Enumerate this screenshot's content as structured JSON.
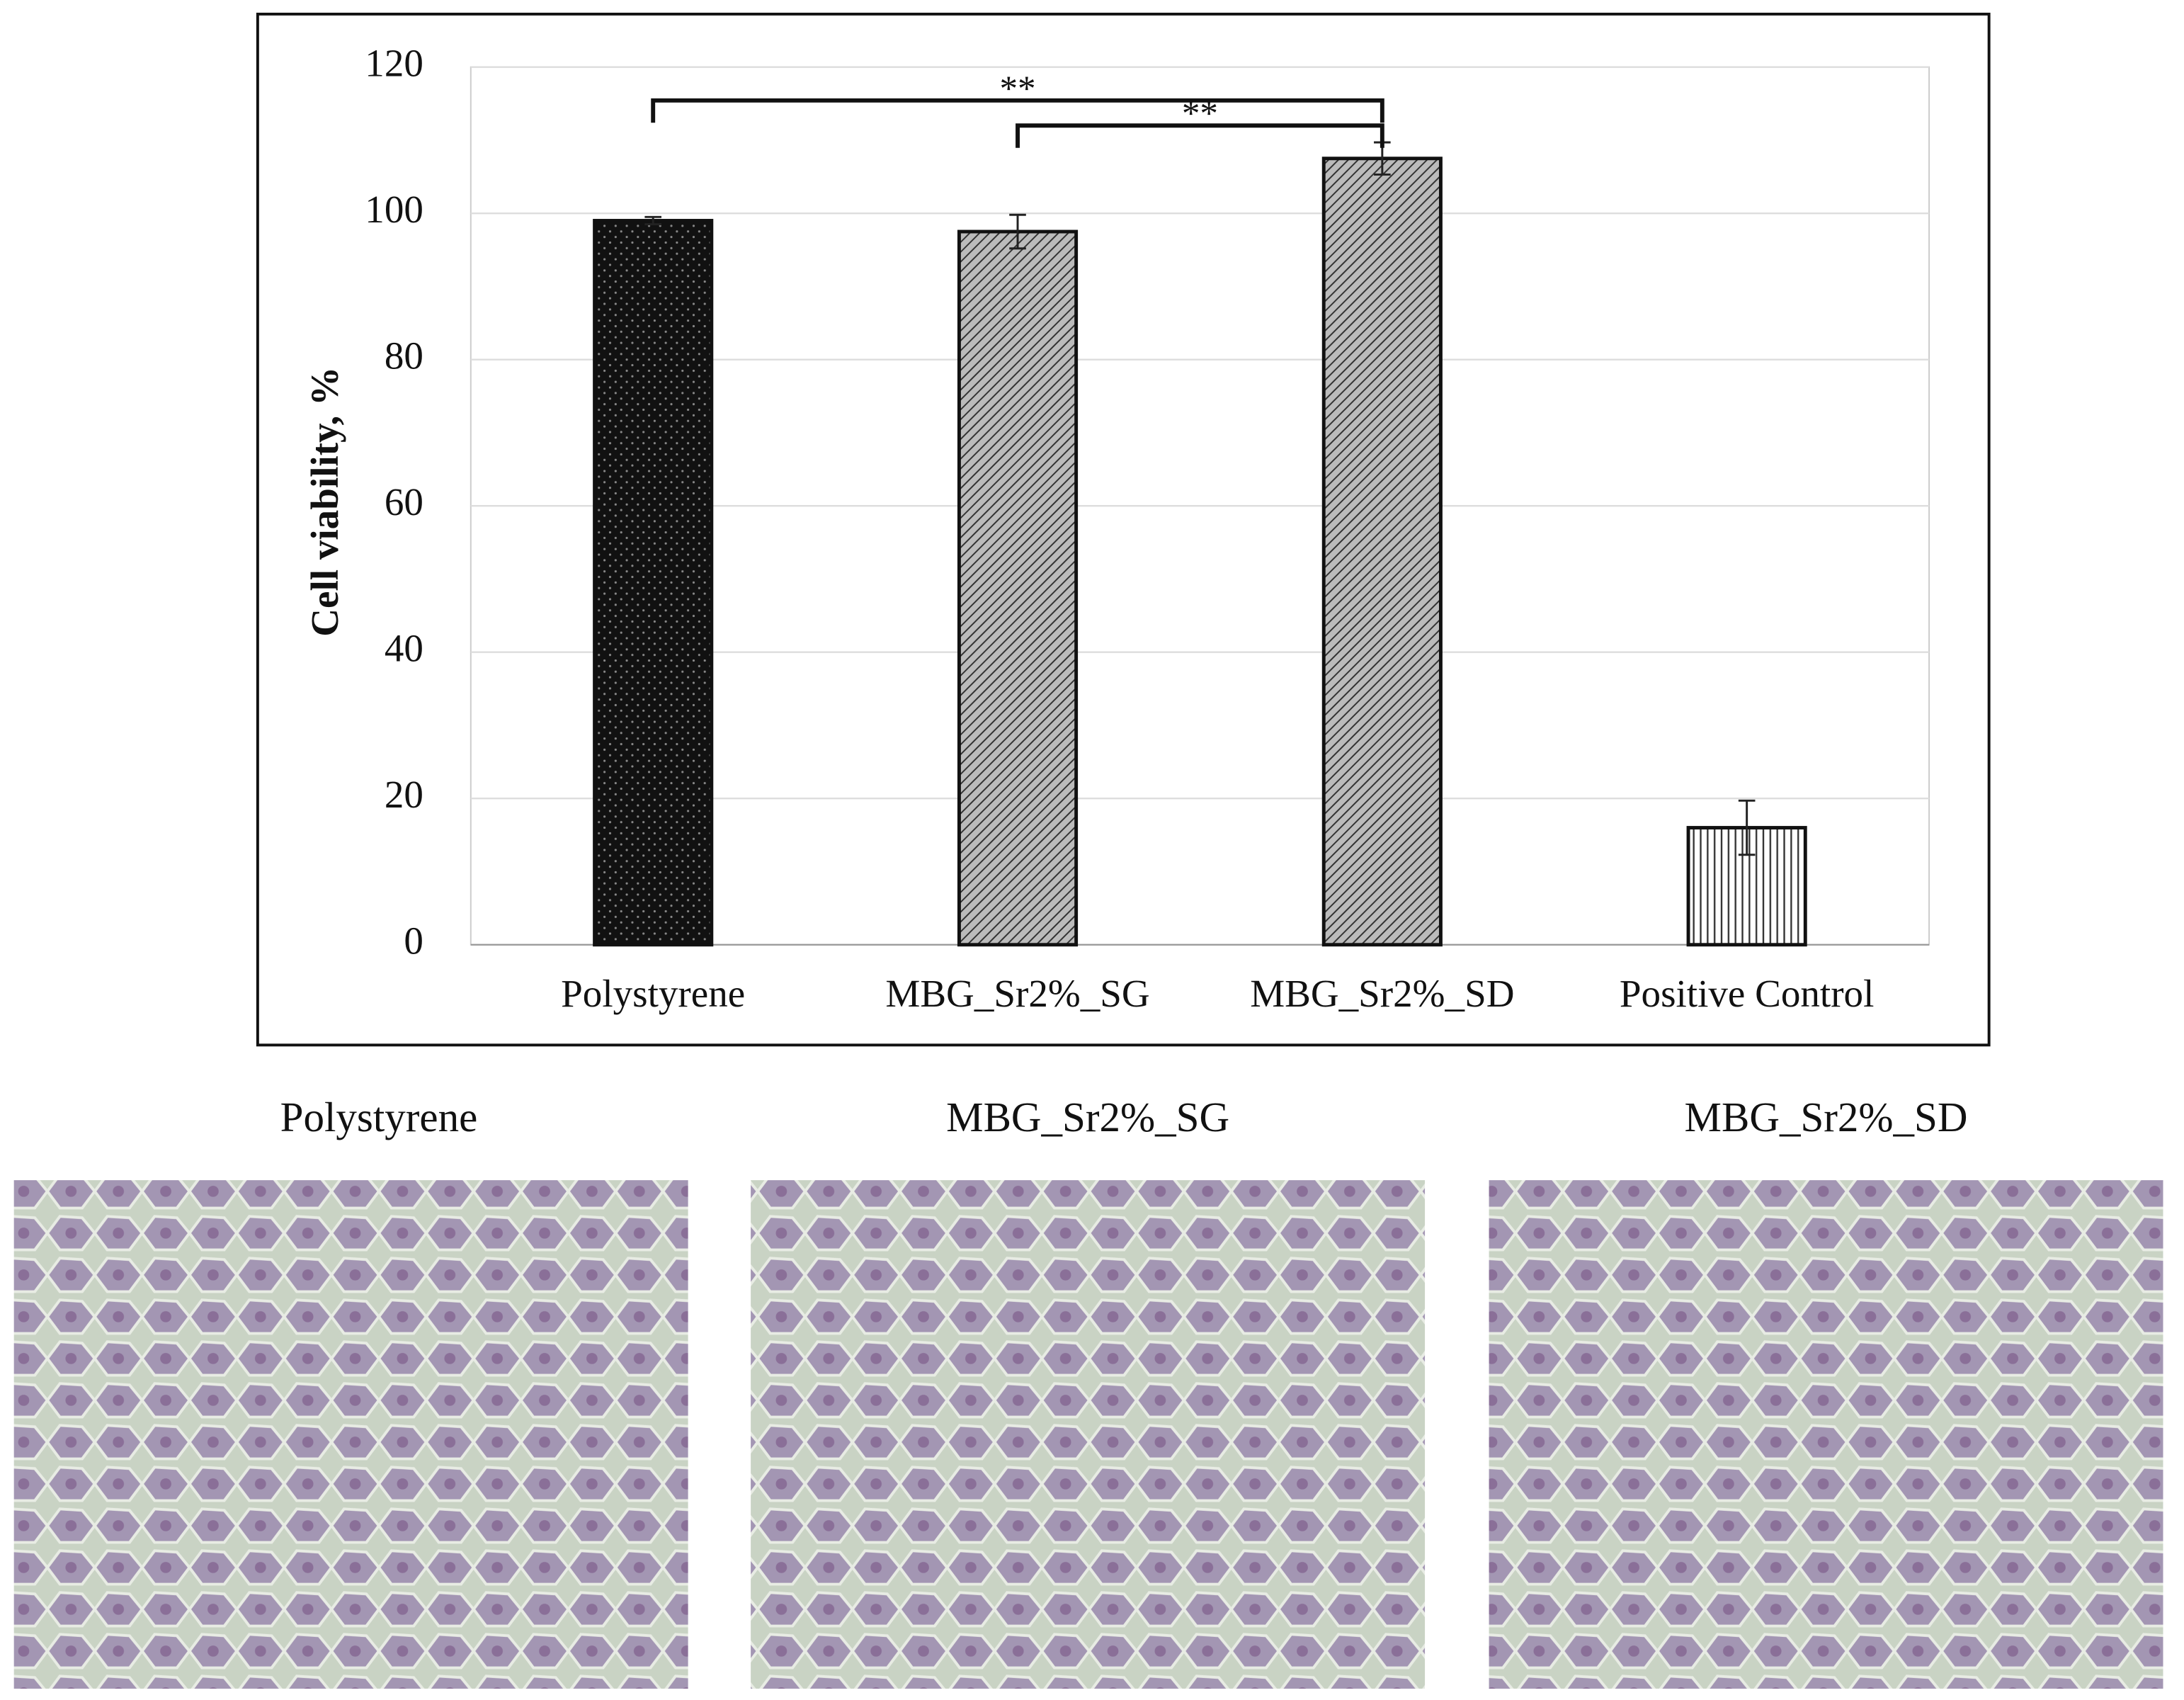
{
  "chart_data": {
    "type": "bar",
    "ylabel": "Cell viability, %",
    "categories": [
      "Polystyrene",
      "MBG_Sr2%_SG",
      "MBG_Sr2%_SD",
      "Positive Control"
    ],
    "values": [
      99,
      97.5,
      107.5,
      16
    ],
    "errors": [
      0.5,
      2.3,
      2.2,
      3.7
    ],
    "colors": [
      "#111111",
      "#8c8c8c",
      "#8c8c8c",
      "#ffffff"
    ],
    "patterns": [
      "dots",
      "diagonal",
      "diagonal",
      "vertical"
    ],
    "ylim": [
      0,
      120
    ],
    "yticks": [
      0,
      20,
      40,
      60,
      80,
      100,
      120
    ],
    "grid": true,
    "annotations": [
      {
        "text": "**",
        "from": 0,
        "to": 2
      },
      {
        "text": "**",
        "from": 1,
        "to": 2
      }
    ]
  },
  "images": [
    {
      "caption": "Polystyrene"
    },
    {
      "caption": "MBG_Sr2%_SG"
    },
    {
      "caption": "MBG_Sr2%_SD"
    }
  ]
}
